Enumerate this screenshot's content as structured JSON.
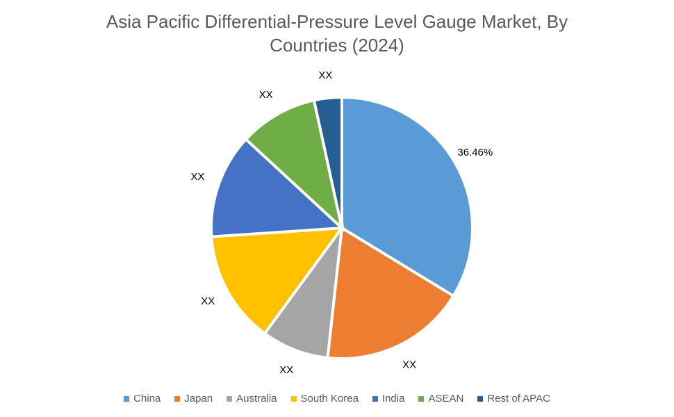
{
  "chart_data": {
    "type": "pie",
    "title": "Asia Pacific Differential-Pressure Level Gauge Market, By Countries (2024)",
    "categories": [
      "China",
      "Japan",
      "Australia",
      "South Korea",
      "India",
      "ASEAN",
      "Rest of APAC"
    ],
    "values": [
      36.46,
      19.5,
      9,
      15,
      14,
      10.5,
      3.7
    ],
    "value_labels": [
      "36.46%",
      "XX",
      "XX",
      "XX",
      "XX",
      "XX",
      "XX"
    ],
    "colors": [
      "#5b9bd5",
      "#ed7d31",
      "#a5a5a5",
      "#ffc000",
      "#4472c4",
      "#70ad47",
      "#255e91"
    ],
    "legend": "bottom"
  }
}
